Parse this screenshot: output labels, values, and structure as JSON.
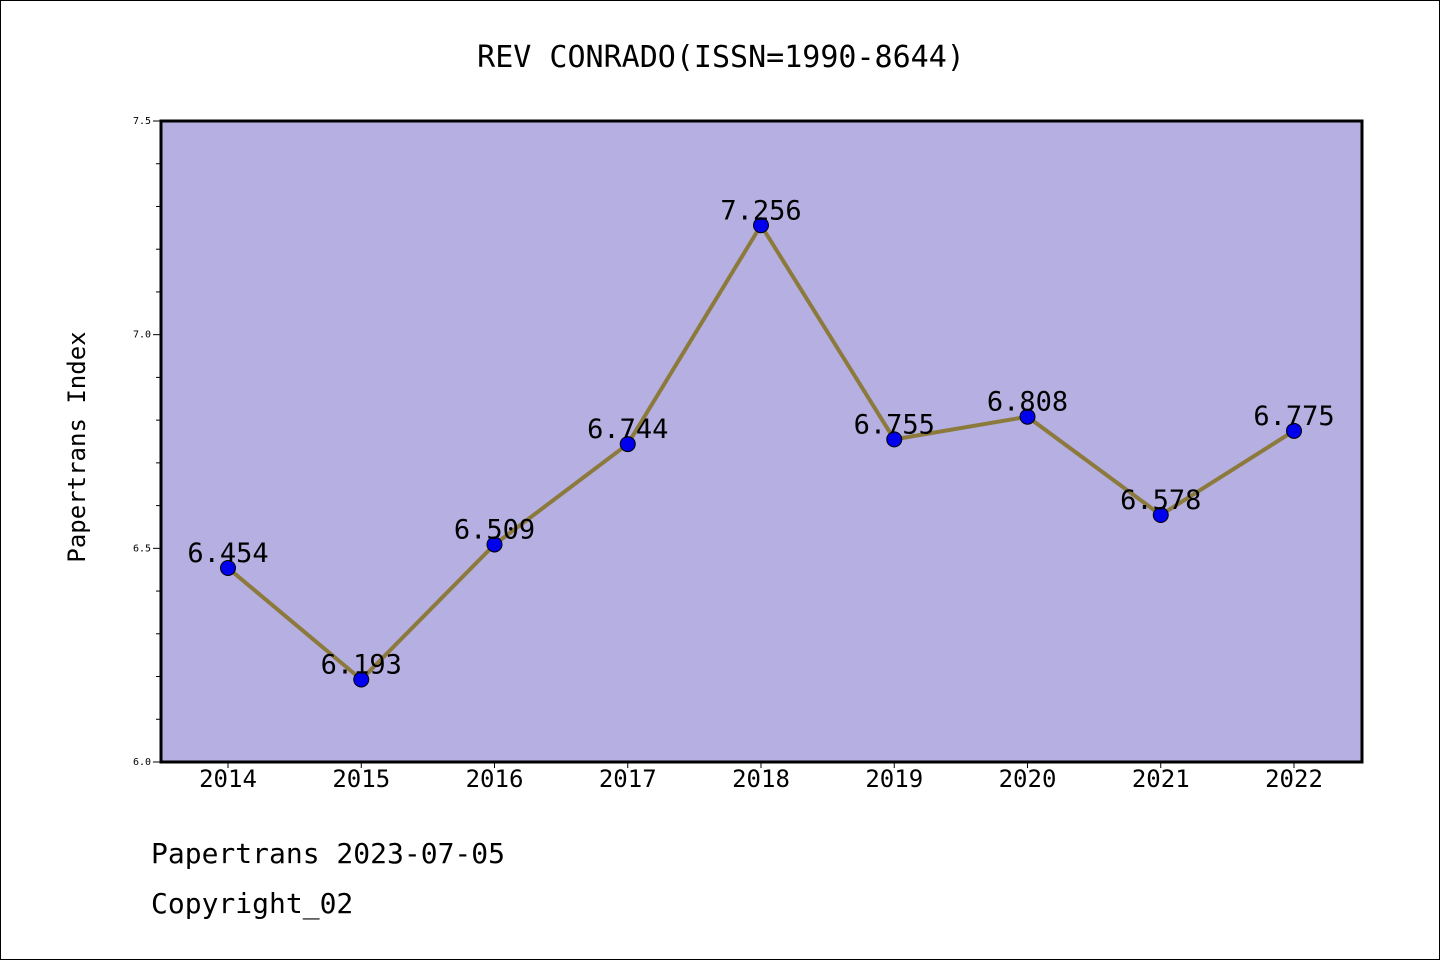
{
  "chart_data": {
    "type": "line",
    "title": "REV CONRADO(ISSN=1990-8644)",
    "xlabel": "",
    "ylabel": "Papertrans Index",
    "categories": [
      "2014",
      "2015",
      "2016",
      "2017",
      "2018",
      "2019",
      "2020",
      "2021",
      "2022"
    ],
    "series": [
      {
        "values": [
          6.454,
          6.193,
          6.509,
          6.744,
          7.256,
          6.755,
          6.808,
          6.578,
          6.775
        ],
        "data_labels": [
          "6.454",
          "6.193",
          "6.509",
          "6.744",
          "7.256",
          "6.755",
          "6.808",
          "6.578",
          "6.775"
        ]
      }
    ],
    "ylim": [
      6.0,
      7.5
    ],
    "yticks": [
      "6.0",
      "6.5",
      "7.0",
      "7.5"
    ],
    "grid": false,
    "colors": {
      "plot_background": "#b5afe2",
      "line": "#8c7a3c",
      "marker": "#0000ee"
    }
  },
  "footer": {
    "line1": "Papertrans 2023-07-05",
    "line2": "Copyright_02"
  }
}
